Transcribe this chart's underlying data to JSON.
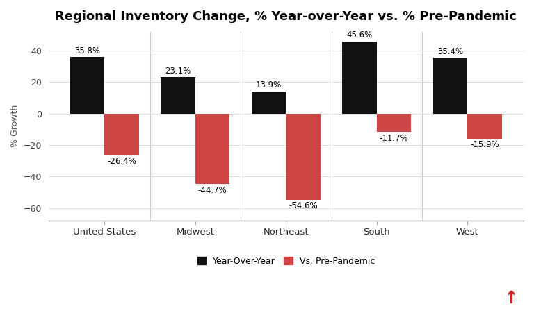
{
  "title": "Regional Inventory Change, % Year-over-Year vs. % Pre-Pandemic",
  "categories": [
    "United States",
    "Midwest",
    "Northeast",
    "South",
    "West"
  ],
  "yoy_values": [
    35.8,
    23.1,
    13.9,
    45.6,
    35.4
  ],
  "prepandemic_values": [
    -26.4,
    -44.7,
    -54.6,
    -11.7,
    -15.9
  ],
  "yoy_color": "#111111",
  "prepandemic_color": "#cc4444",
  "ylabel": "% Growth",
  "ylim": [
    -68,
    52
  ],
  "yticks": [
    -60,
    -40,
    -20,
    0,
    20,
    40
  ],
  "bar_width": 0.38,
  "legend_labels": [
    "Year-Over-Year",
    "Vs. Pre-Pandemic"
  ],
  "background_color": "#ffffff",
  "grid_color": "#dddddd",
  "label_fontsize": 8.5,
  "title_fontsize": 13,
  "icon_color": "#cc2222"
}
